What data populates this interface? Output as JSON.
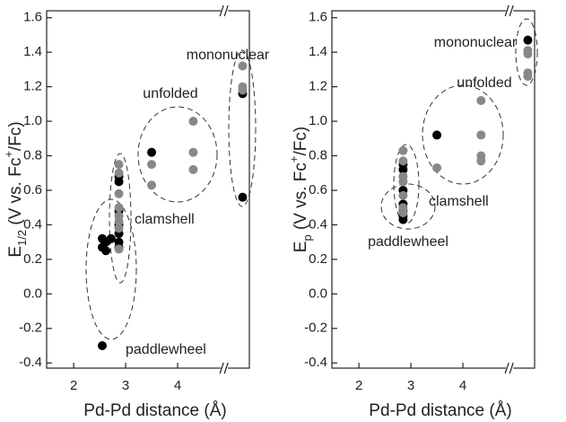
{
  "chart_data": [
    {
      "type": "scatter",
      "xlabel": "Pd-Pd distance (Å)",
      "ylabel_parts": [
        "E",
        "1/2",
        " (V vs. Fc",
        "+",
        "/Fc)"
      ],
      "xlim": [
        1.48,
        5.38
      ],
      "xticks": [
        2,
        3,
        4
      ],
      "xbreak": 4.9,
      "ylim": [
        -0.43,
        1.64
      ],
      "yticks": [
        -0.4,
        -0.2,
        {
          "value": 0,
          "label": "0.0"
        },
        0.2,
        0.4,
        0.6,
        0.8,
        {
          "value": 1,
          "label": "1.0"
        },
        1.2,
        1.4,
        1.6
      ],
      "series": [
        {
          "color": "#000000",
          "x": [
            2.55,
            2.62,
            2.55,
            2.62,
            2.72,
            2.55,
            2.87,
            2.87,
            2.87,
            2.87,
            2.87,
            2.87,
            2.87,
            3.5,
            5.25,
            5.25
          ],
          "values": [
            0.32,
            0.3,
            0.27,
            0.25,
            0.32,
            -0.3,
            0.68,
            0.65,
            0.48,
            0.4,
            0.35,
            0.3,
            0.27,
            0.82,
            1.16,
            0.56
          ]
        },
        {
          "color": "#888888",
          "x": [
            2.87,
            2.87,
            2.87,
            2.87,
            2.87,
            2.87,
            2.87,
            2.87,
            3.5,
            3.5,
            4.3,
            4.3,
            4.3,
            5.25,
            5.25,
            5.25
          ],
          "values": [
            0.75,
            0.7,
            0.58,
            0.5,
            0.45,
            0.42,
            0.38,
            0.26,
            0.75,
            0.63,
            1.0,
            0.82,
            0.72,
            1.32,
            1.2,
            1.18
          ]
        }
      ],
      "annotations": [
        "mononuclear",
        "unfolded",
        "clamshell",
        "paddlewheel"
      ]
    },
    {
      "type": "scatter",
      "xlabel": "Pd-Pd distance (Å)",
      "ylabel_parts": [
        "E",
        "p",
        " (V vs. Fc",
        "+",
        "/Fc)"
      ],
      "xlim": [
        1.48,
        5.38
      ],
      "xticks": [
        2,
        3,
        4
      ],
      "xbreak": 4.9,
      "ylim": [
        -0.43,
        1.64
      ],
      "yticks": [
        -0.4,
        -0.2,
        {
          "value": 0,
          "label": "0.0"
        },
        0.2,
        0.4,
        0.6,
        0.8,
        {
          "value": 1,
          "label": "1.0"
        },
        1.2,
        1.4,
        1.6
      ],
      "series": [
        {
          "color": "#000000",
          "x": [
            2.85,
            2.85,
            2.85,
            2.85,
            2.85,
            2.85,
            2.85,
            3.5,
            5.25
          ],
          "values": [
            0.75,
            0.72,
            0.6,
            0.52,
            0.48,
            0.45,
            0.43,
            0.92,
            1.47
          ]
        },
        {
          "color": "#888888",
          "x": [
            2.85,
            2.85,
            2.85,
            2.85,
            2.85,
            2.85,
            2.85,
            3.5,
            4.35,
            4.35,
            4.35,
            4.35,
            5.25,
            5.25,
            5.25,
            5.25
          ],
          "values": [
            0.83,
            0.77,
            0.68,
            0.65,
            0.57,
            0.5,
            0.47,
            0.73,
            1.12,
            0.92,
            0.8,
            0.77,
            1.41,
            1.39,
            1.28,
            1.26
          ]
        }
      ],
      "annotations": [
        "mononuclear",
        "unfolded",
        "clamshell",
        "paddlewheel"
      ]
    }
  ]
}
